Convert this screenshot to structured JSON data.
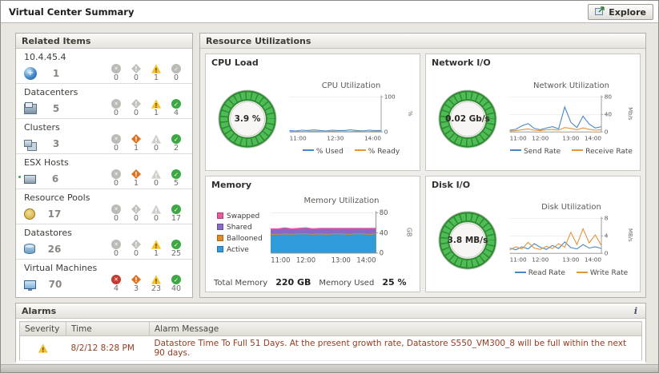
{
  "header": {
    "title": "Virtual Center Summary",
    "explore_label": "Explore"
  },
  "related_items": {
    "title": "Related Items",
    "status_levels": [
      "fatal",
      "critical",
      "warning",
      "normal"
    ],
    "rows": [
      {
        "label": "10.4.45.4",
        "icon": "vcenter",
        "count": 1,
        "statuses": [
          0,
          0,
          1,
          0
        ]
      },
      {
        "label": "Datacenters",
        "icon": "datacenter",
        "count": 5,
        "statuses": [
          0,
          0,
          1,
          4
        ]
      },
      {
        "label": "Clusters",
        "icon": "cluster",
        "count": 3,
        "statuses": [
          0,
          1,
          0,
          2
        ]
      },
      {
        "label": "ESX Hosts",
        "icon": "host",
        "count": 6,
        "statuses": [
          0,
          1,
          0,
          5
        ]
      },
      {
        "label": "Resource Pools",
        "icon": "pool",
        "count": 17,
        "statuses": [
          0,
          0,
          0,
          17
        ]
      },
      {
        "label": "Datastores",
        "icon": "datastore",
        "count": 26,
        "statuses": [
          0,
          0,
          1,
          25
        ]
      },
      {
        "label": "Virtual Machines",
        "icon": "vm",
        "count": 70,
        "statuses": [
          4,
          3,
          23,
          40
        ]
      }
    ]
  },
  "resource_utilizations": {
    "title": "Resource Utilizations",
    "cpu": {
      "panel_title": "CPU Load",
      "gauge_value": "3.9 %",
      "chart": {
        "type": "line",
        "title": "CPU Utilization",
        "unit": "%",
        "ylim": [
          0,
          100
        ],
        "yticks": [
          0,
          100
        ],
        "x_labels": [
          "11:00",
          "12:30",
          "14:00"
        ],
        "series": [
          {
            "name": "% Used",
            "color": "#4a87c7",
            "values": [
              4,
              3,
              5,
              4,
              6,
              4,
              3,
              5,
              4,
              4,
              6,
              4,
              3,
              5,
              4,
              4
            ]
          },
          {
            "name": "% Ready",
            "color": "#e2953d",
            "values": [
              1,
              2,
              1,
              1,
              2,
              1,
              1,
              2,
              1,
              1,
              1,
              2,
              1,
              1,
              2,
              1
            ]
          }
        ]
      }
    },
    "network": {
      "panel_title": "Network I/O",
      "gauge_value": "0.02 Gb/s",
      "chart": {
        "type": "line",
        "title": "Network Utilization",
        "unit": "Mb/s",
        "ylim": [
          0,
          80
        ],
        "yticks": [
          0,
          40,
          80
        ],
        "x_labels": [
          "11:00",
          "12:00",
          "13:00",
          "14:00"
        ],
        "series": [
          {
            "name": "Send Rate",
            "color": "#4a87c7",
            "values": [
              4,
              6,
              14,
              19,
              8,
              5,
              9,
              12,
              7,
              57,
              22,
              10,
              36,
              18,
              9,
              12
            ]
          },
          {
            "name": "Receive Rate",
            "color": "#e2953d",
            "values": [
              2,
              3,
              5,
              7,
              4,
              3,
              5,
              6,
              4,
              10,
              8,
              5,
              9,
              6,
              4,
              5
            ]
          }
        ]
      }
    },
    "memory": {
      "panel_title": "Memory",
      "legend": [
        {
          "label": "Swapped",
          "color": "#e8599e"
        },
        {
          "label": "Shared",
          "color": "#8a68c6"
        },
        {
          "label": "Ballooned",
          "color": "#de8a2d"
        },
        {
          "label": "Active",
          "color": "#2f9bdb"
        }
      ],
      "chart": {
        "type": "stacked",
        "title": "Memory Utilization",
        "unit": "GB",
        "ylim": [
          0,
          80
        ],
        "yticks": [
          0,
          40,
          80
        ],
        "x_labels": [
          "11:00",
          "12:00",
          "13:00",
          "14:00"
        ],
        "series": [
          {
            "name": "Active",
            "color": "#2f9bdb",
            "values": [
              37,
              37,
              38,
              37,
              38,
              38,
              37,
              38,
              37,
              38,
              38,
              37,
              38,
              38,
              37,
              38
            ]
          },
          {
            "name": "Ballooned",
            "color": "#de8a2d",
            "values": [
              1.5,
              1.5,
              1.5,
              1.5,
              1.5,
              1.5,
              1.5,
              1.5,
              1.5,
              1.5,
              1.5,
              1.5,
              1.5,
              1.5,
              1.5,
              1.5
            ]
          },
          {
            "name": "Shared",
            "color": "#8a68c6",
            "values": [
              9,
              9,
              10,
              9,
              9,
              10,
              9,
              9,
              10,
              9,
              9,
              10,
              9,
              9,
              10,
              9
            ]
          },
          {
            "name": "Swapped",
            "color": "#e8599e",
            "values": [
              1.2,
              1.2,
              1.2,
              1.2,
              1.2,
              1.2,
              1.2,
              1.2,
              1.2,
              1.2,
              1.2,
              1.2,
              1.2,
              1.2,
              1.2,
              1.2
            ]
          }
        ]
      },
      "total_memory_label": "Total Memory",
      "total_memory_value": "220 GB",
      "memory_used_label": "Memory Used",
      "memory_used_value": "25 %"
    },
    "disk": {
      "panel_title": "Disk I/O",
      "gauge_value": "3.8 MB/s",
      "chart": {
        "type": "line",
        "title": "Disk Utilization",
        "unit": "MB/s",
        "ylim": [
          0,
          8
        ],
        "yticks": [
          0,
          4,
          8
        ],
        "x_labels": [
          "11:00",
          "12:00",
          "13:00",
          "14:00"
        ],
        "series": [
          {
            "name": "Read Rate",
            "color": "#4a87c7",
            "values": [
              1.2,
              0.8,
              1.5,
              1.0,
              2.2,
              1.4,
              0.9,
              1.8,
              1.1,
              2.6,
              1.3,
              1.0,
              2.0,
              1.2,
              1.5,
              1.1
            ]
          },
          {
            "name": "Write Rate",
            "color": "#e2953d",
            "values": [
              0.8,
              1.5,
              1.0,
              2.5,
              1.2,
              0.9,
              1.6,
              1.1,
              2.2,
              1.4,
              4.8,
              2.0,
              5.6,
              2.4,
              4.2,
              1.8
            ]
          }
        ]
      }
    }
  },
  "alarms": {
    "title": "Alarms",
    "info_icon": "i",
    "columns": [
      "Severity",
      "Time",
      "Alarm Message"
    ],
    "rows": [
      {
        "severity": "warning",
        "time": "8/2/12 8:28 PM",
        "message": "Datastore Time To Full 51 Days. At the present growth rate, Datastore S550_VM300_8 will be full within the next 90 days."
      }
    ]
  }
}
